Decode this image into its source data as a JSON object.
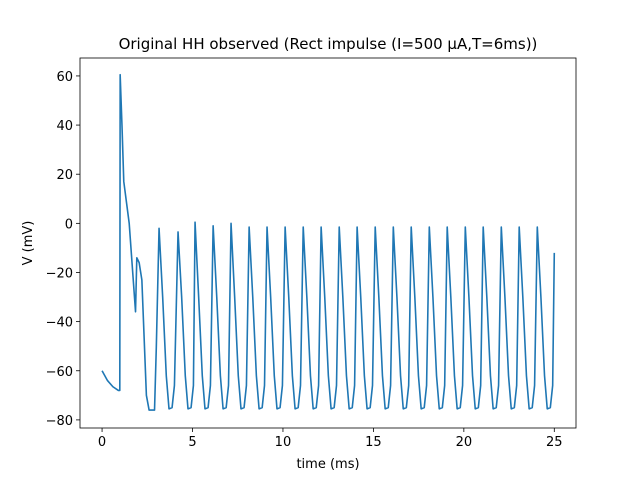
{
  "chart_data": {
    "type": "line",
    "title": "Original HH observed (Rect impulse (I=500 μA,T=6ms))",
    "xlabel": "time (ms)",
    "ylabel": "V (mV)",
    "color": "#1f77b4",
    "x": [
      0,
      0.3,
      0.6,
      0.9,
      0.98,
      1.0,
      1.1,
      1.2,
      1.5,
      1.85,
      1.92,
      2.05,
      2.2,
      2.45,
      2.6,
      2.9,
      3.0,
      3.15,
      3.35,
      3.55,
      3.7,
      3.87,
      4.0,
      4.2,
      4.4,
      4.6,
      4.75,
      4.92,
      5.05,
      5.14,
      5.34,
      5.54,
      5.69,
      5.86,
      5.99,
      6.14,
      6.34,
      6.54,
      6.69,
      6.86,
      6.99,
      7.13,
      7.33,
      7.53,
      7.68,
      7.85,
      7.98,
      8.13,
      8.33,
      8.53,
      8.68,
      8.85,
      8.98,
      9.12,
      9.32,
      9.52,
      9.67,
      9.84,
      9.97,
      10.12,
      10.32,
      10.52,
      10.67,
      10.84,
      10.97,
      11.12,
      11.32,
      11.52,
      11.67,
      11.84,
      11.97,
      12.11,
      12.31,
      12.51,
      12.66,
      12.83,
      12.96,
      13.11,
      13.31,
      13.51,
      13.66,
      13.83,
      13.96,
      14.1,
      14.3,
      14.5,
      14.65,
      14.82,
      14.95,
      15.1,
      15.3,
      15.5,
      15.65,
      15.82,
      15.95,
      16.1,
      16.3,
      16.5,
      16.65,
      16.82,
      16.95,
      17.09,
      17.29,
      17.49,
      17.64,
      17.81,
      17.94,
      18.09,
      18.29,
      18.49,
      18.64,
      18.81,
      18.94,
      19.08,
      19.28,
      19.48,
      19.63,
      19.8,
      19.93,
      20.08,
      20.28,
      20.48,
      20.63,
      20.8,
      20.93,
      21.07,
      21.27,
      21.47,
      21.62,
      21.79,
      21.92,
      22.07,
      22.27,
      22.47,
      22.62,
      22.79,
      22.92,
      23.06,
      23.26,
      23.46,
      23.61,
      23.78,
      23.91,
      24.06,
      24.26,
      24.46,
      24.61,
      24.78,
      24.91,
      25
    ],
    "values": [
      -60,
      -64,
      -66.5,
      -68,
      -68,
      60.5,
      40,
      17,
      0,
      -36,
      -14,
      -16,
      -23,
      -70,
      -76,
      -76,
      -50,
      -2,
      -30,
      -62,
      -75.5,
      -75,
      -66,
      -3.5,
      -30,
      -62,
      -75.5,
      -75,
      -66,
      0.5,
      -30,
      -62,
      -75.5,
      -75,
      -66,
      -1,
      -30,
      -62,
      -75.5,
      -75,
      -66,
      0,
      -30,
      -62,
      -75.5,
      -75,
      -66,
      -1.5,
      -30,
      -62,
      -75.5,
      -75,
      -66,
      -1.5,
      -30,
      -62,
      -75.5,
      -75,
      -66,
      -1.5,
      -30,
      -62,
      -75.5,
      -75,
      -66,
      -1.5,
      -30,
      -62,
      -75.5,
      -75,
      -66,
      -1.5,
      -30,
      -62,
      -75.5,
      -75,
      -66,
      -1.5,
      -30,
      -62,
      -75.5,
      -75,
      -66,
      -1.5,
      -30,
      -62,
      -75.5,
      -75,
      -66,
      -1.5,
      -30,
      -62,
      -75.5,
      -75,
      -66,
      -1.5,
      -30,
      -62,
      -75.5,
      -75,
      -66,
      -1.5,
      -30,
      -62,
      -75.5,
      -75,
      -66,
      -1.5,
      -30,
      -62,
      -75.5,
      -75,
      -66,
      -1.5,
      -30,
      -62,
      -75.5,
      -75,
      -66,
      -1.5,
      -30,
      -62,
      -75.5,
      -75,
      -66,
      -1.5,
      -30,
      -62,
      -75.5,
      -75,
      -66,
      -1.5,
      -30,
      -62,
      -75.5,
      -75,
      -66,
      -1.5,
      -30,
      -62,
      -75.5,
      -75,
      -66,
      -1.5,
      -30,
      -62,
      -75.5,
      -75,
      -66,
      -12
    ],
    "xlim": [
      -1.22,
      26.2
    ],
    "ylim": [
      -83.3,
      67.3
    ],
    "xticks": [
      0,
      5,
      10,
      15,
      20,
      25
    ],
    "yticks": [
      {
        "value": -80,
        "label": "−80"
      },
      {
        "value": -60,
        "label": "−60"
      },
      {
        "value": -40,
        "label": "−40"
      },
      {
        "value": -20,
        "label": "−20"
      },
      0,
      20,
      40,
      60
    ]
  }
}
